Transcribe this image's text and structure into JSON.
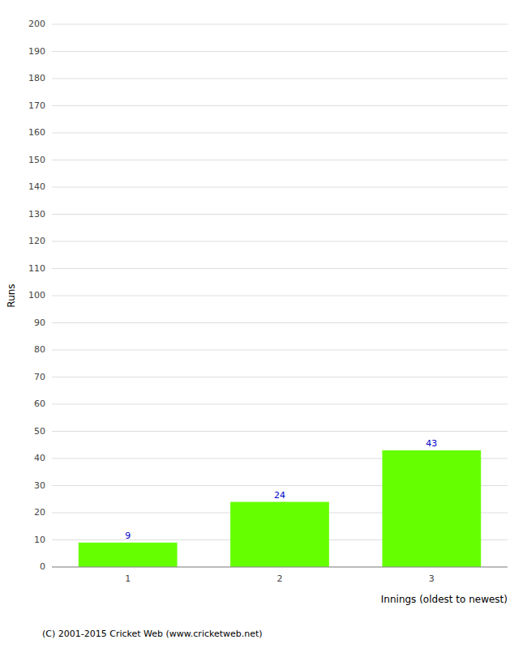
{
  "chart_data": {
    "type": "bar",
    "categories": [
      "1",
      "2",
      "3"
    ],
    "values": [
      9,
      24,
      43
    ],
    "color": "#66ff00",
    "ylabel": "Runs",
    "xlabel": "Innings (oldest to newest)",
    "ylim": [
      0,
      200
    ],
    "yticks": [
      0,
      10,
      20,
      30,
      40,
      50,
      60,
      70,
      80,
      90,
      100,
      110,
      120,
      130,
      140,
      150,
      160,
      170,
      180,
      190,
      200
    ],
    "grid": true,
    "data_labels": true,
    "annotations": [
      "(C) 2001-2015 Cricket Web (www.cricketweb.net)"
    ]
  }
}
